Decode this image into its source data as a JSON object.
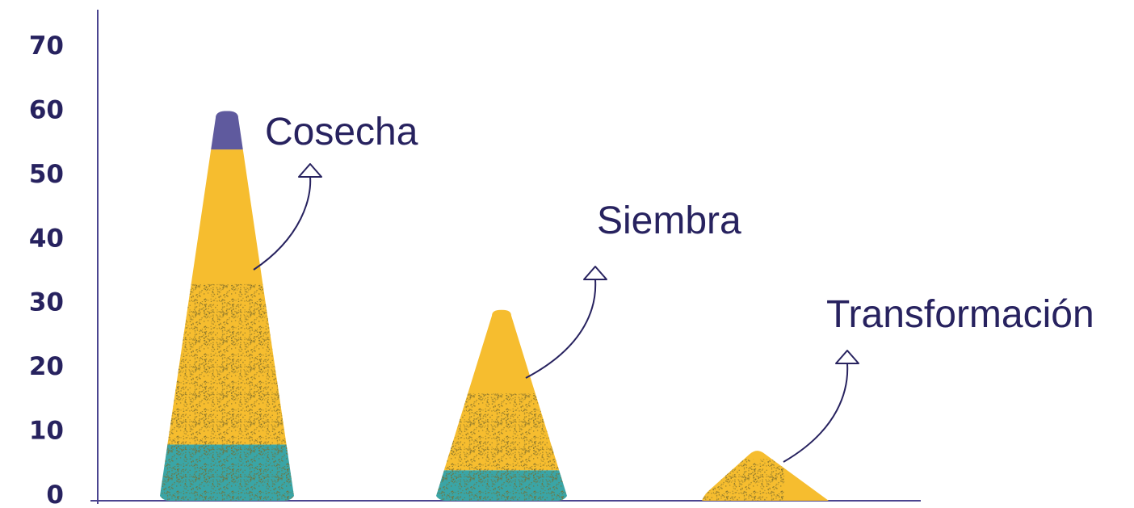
{
  "chart_data": {
    "type": "bar",
    "categories": [
      "Cosecha",
      "Siembra",
      "Transformación"
    ],
    "series": [
      {
        "values": [
          8,
          4,
          0
        ]
      },
      {
        "values": [
          46,
          25,
          7
        ]
      },
      {
        "values": [
          6,
          0,
          0
        ]
      }
    ],
    "totals": [
      60,
      29,
      7
    ],
    "ylim": [
      0,
      70
    ],
    "yticks": [
      "0",
      "10",
      "20",
      "30",
      "40",
      "50",
      "60",
      "70"
    ],
    "xlabel": "",
    "ylabel": "",
    "grid": false,
    "colors": {
      "axis": "#4b4590",
      "text": "#27225f",
      "teal": "#3aa5a6",
      "yellow": "#f6bd2f",
      "purple": "#5f5a9e",
      "speckle": "#7a6a2a"
    }
  }
}
